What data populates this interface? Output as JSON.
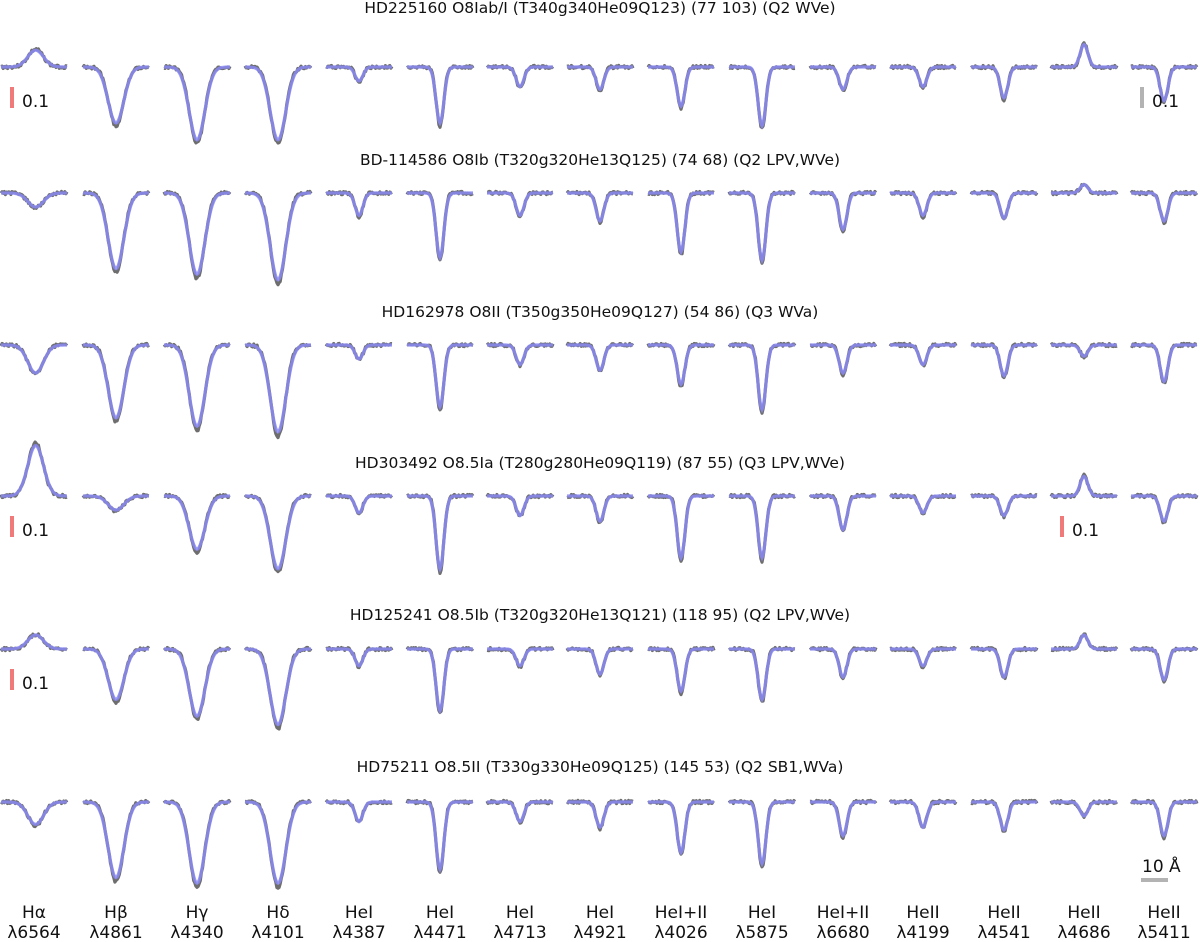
{
  "chart_data": {
    "type": "line",
    "colors": {
      "observed": "#6e6e6e",
      "model": "#5b5bf0",
      "model_light": "#8a8af5",
      "scale_red": "#f07a7a",
      "scale_gray": "#b3b3b3"
    },
    "lines": [
      {
        "name": "Hα",
        "lambda": "λ6564"
      },
      {
        "name": "Hβ",
        "lambda": "λ4861"
      },
      {
        "name": "Hγ",
        "lambda": "λ4340"
      },
      {
        "name": "Hδ",
        "lambda": "λ4101"
      },
      {
        "name": "HeI",
        "lambda": "λ4387"
      },
      {
        "name": "HeI",
        "lambda": "λ4471"
      },
      {
        "name": "HeI",
        "lambda": "λ4713"
      },
      {
        "name": "HeI",
        "lambda": "λ4921"
      },
      {
        "name": "HeI+II",
        "lambda": "λ4026"
      },
      {
        "name": "HeI",
        "lambda": "λ5875"
      },
      {
        "name": "HeI+II",
        "lambda": "λ6680"
      },
      {
        "name": "HeII",
        "lambda": "λ4199"
      },
      {
        "name": "HeII",
        "lambda": "λ4541"
      },
      {
        "name": "HeII",
        "lambda": "λ4686"
      },
      {
        "name": "HeII",
        "lambda": "λ5411"
      }
    ],
    "stars": [
      {
        "title": "HD225160 O8Iab/I (T340g340He09Q123) (77 103) (Q2 WVe)",
        "depths": [
          -0.06,
          0.2,
          0.26,
          0.26,
          0.05,
          0.2,
          0.07,
          0.08,
          0.14,
          0.21,
          0.08,
          0.07,
          0.11,
          -0.08,
          0.12
        ],
        "scale_bars": [
          {
            "col": 0,
            "label": "0.1",
            "color": "red"
          },
          {
            "col": 14,
            "label": "0.1",
            "color": "gray"
          }
        ]
      },
      {
        "title": "BD-114586 O8Ib (T320g320He13Q125) (74 68) (Q2 LPV,WVe)",
        "depths": [
          0.05,
          0.27,
          0.29,
          0.31,
          0.08,
          0.23,
          0.08,
          0.1,
          0.21,
          0.24,
          0.13,
          0.08,
          0.09,
          -0.03,
          0.1
        ],
        "scale_bars": []
      },
      {
        "title": "HD162978 O8II (T350g350He09Q127) (54 86) (Q3 WVa)",
        "depths": [
          0.1,
          0.26,
          0.29,
          0.31,
          0.05,
          0.22,
          0.07,
          0.09,
          0.14,
          0.23,
          0.1,
          0.07,
          0.11,
          0.04,
          0.13
        ],
        "scale_bars": []
      },
      {
        "title": "HD303492 O8.5Ia (T280g280He09Q119) (87 55) (Q3 LPV,WVe)",
        "depths": [
          -0.18,
          0.05,
          0.19,
          0.26,
          0.06,
          0.26,
          0.07,
          0.09,
          0.22,
          0.22,
          0.12,
          0.06,
          0.07,
          -0.07,
          0.09
        ],
        "scale_bars": [
          {
            "col": 0,
            "label": "0.1",
            "color": "red"
          },
          {
            "col": 13,
            "label": "0.1",
            "color": "red"
          }
        ]
      },
      {
        "title": "HD125241 O8.5Ib (T320g320He13Q121) (118 95) (Q2 LPV,WVe)",
        "depths": [
          -0.05,
          0.18,
          0.24,
          0.27,
          0.06,
          0.22,
          0.06,
          0.09,
          0.15,
          0.18,
          0.1,
          0.06,
          0.1,
          -0.05,
          0.11
        ],
        "scale_bars": [
          {
            "col": 0,
            "label": "0.1",
            "color": "red"
          }
        ]
      },
      {
        "title": "HD75211 O8.5II (T330g330He09Q125) (145 53) (Q2 SB1,WVa)",
        "depths": [
          0.08,
          0.27,
          0.29,
          0.29,
          0.07,
          0.24,
          0.07,
          0.09,
          0.18,
          0.22,
          0.12,
          0.09,
          0.1,
          0.05,
          0.12
        ],
        "scale_bars": []
      }
    ],
    "wavelength_scale": {
      "label": "10 Å"
    }
  }
}
